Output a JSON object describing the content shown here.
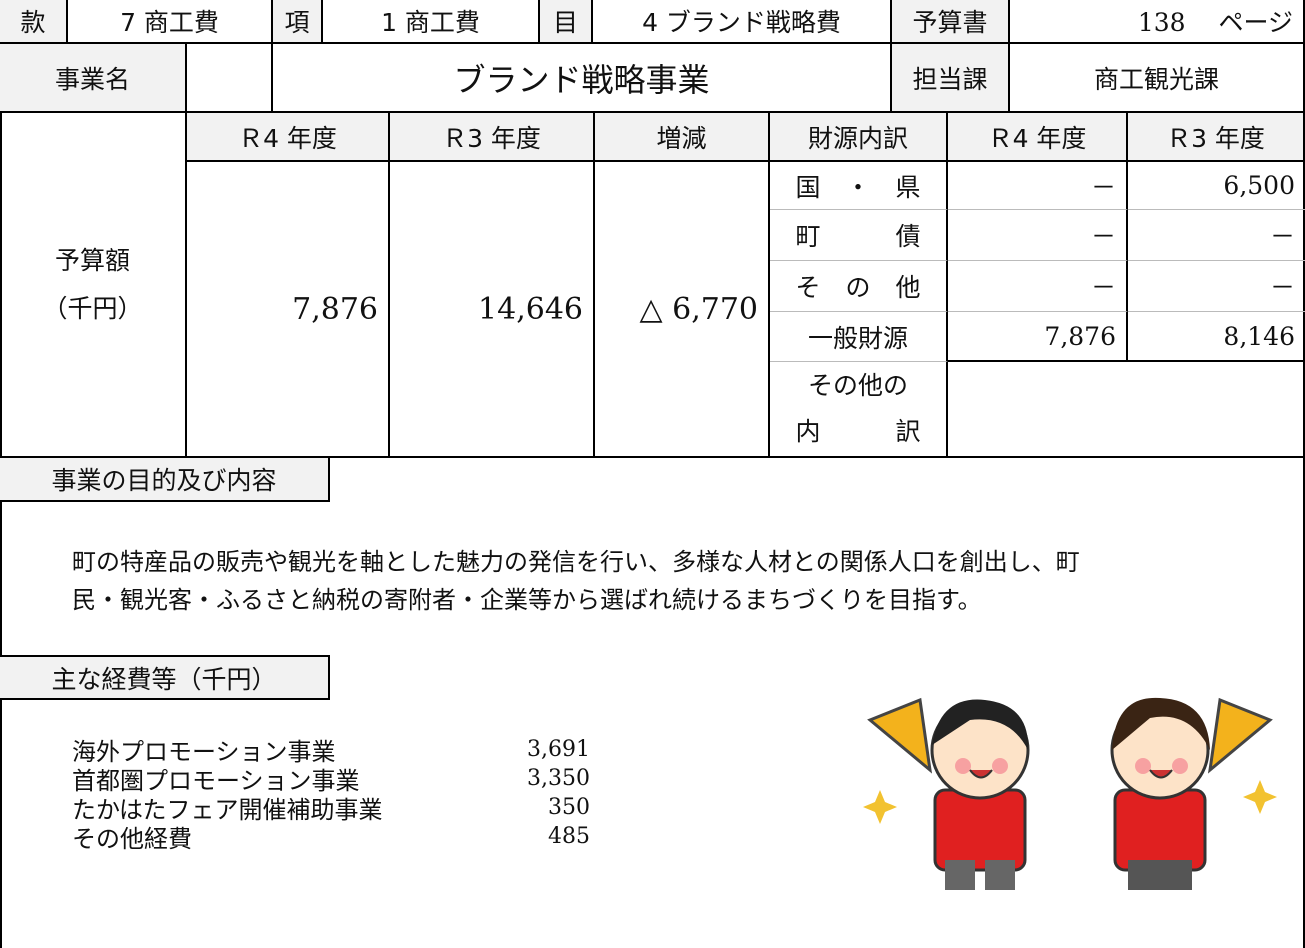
{
  "top_row": {
    "kan_label": "款",
    "kan": "7 商工費",
    "kou_label": "項",
    "kou": "1 商工費",
    "moku_label": "目",
    "moku": "4 ブランド戦略費",
    "book_label": "予算書",
    "book_page": "138　 ページ"
  },
  "name_row": {
    "label": "事業名",
    "name": "ブランド戦略事業",
    "dept_label": "担当課",
    "dept": "商工観光課"
  },
  "budget": {
    "label": [
      "予算額",
      "（千円）"
    ],
    "col_headers": [
      "Ｒ4 年度",
      "Ｒ3 年度",
      "増減",
      "財源内訳",
      "Ｒ4 年度",
      "Ｒ3 年度"
    ],
    "r4": "7,876",
    "r3": "14,646",
    "change": "△ 6,770",
    "sources": [
      {
        "name": "国　・　県",
        "r4": "－",
        "r3": "6,500"
      },
      {
        "name": "町　　　債",
        "r4": "－",
        "r3": "－"
      },
      {
        "name": "そ　の　他",
        "r4": "－",
        "r3": "－"
      },
      {
        "name": "一般財源",
        "r4": "7,876",
        "r3": "8,146"
      }
    ],
    "other_breakdown": [
      "その他の",
      "内　　　訳"
    ]
  },
  "purpose": {
    "label": "事業の目的及び内容",
    "text": [
      "町の特産品の販売や観光を軸とした魅力の発信を行い、多様な人材との関係人口を創出し、町",
      "民・観光客・ふるさと納税の寄附者・企業等から選ばれ続けるまちづくりを目指す。"
    ]
  },
  "expenses": {
    "label": "主な経費等（千円）",
    "items": [
      {
        "name": "海外プロモーション事業",
        "amount": "3,691"
      },
      {
        "name": "首都圏プロモーション事業",
        "amount": "3,350"
      },
      {
        "name": "たかはたフェア開催補助事業",
        "amount": "350"
      },
      {
        "name": "その他経費",
        "amount": "485"
      }
    ]
  }
}
